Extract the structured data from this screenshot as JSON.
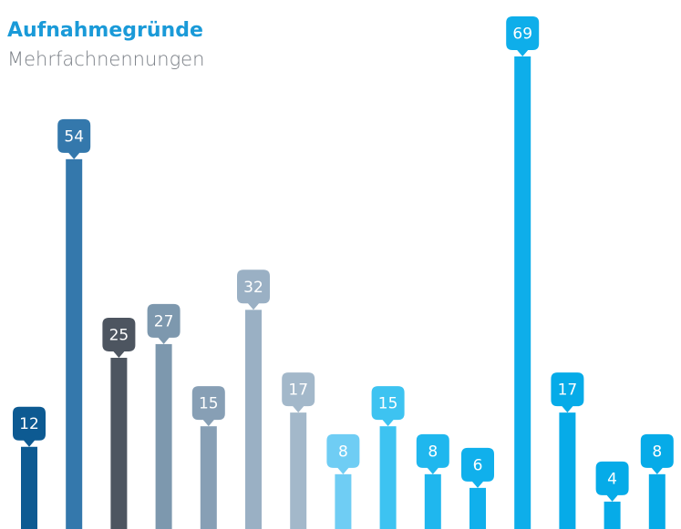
{
  "chart_data": {
    "type": "bar",
    "title": "Aufnahmegründe",
    "subtitle": "Mehrfachnennungen",
    "categories": [
      null,
      null,
      null,
      null,
      null,
      null,
      null,
      null,
      null,
      null,
      null,
      null,
      null,
      null,
      null
    ],
    "values": [
      12,
      54,
      25,
      27,
      15,
      32,
      17,
      8,
      15,
      8,
      6,
      69,
      17,
      4,
      8
    ],
    "colors": [
      "#0d5a92",
      "#3478ac",
      "#4d5560",
      "#7d98ae",
      "#879fb5",
      "#9ab0c4",
      "#a3b8ca",
      "#6fcdf4",
      "#3dc3f1",
      "#1fb7ee",
      "#10b0ec",
      "#0eaeea",
      "#06abe8",
      "#06abe8",
      "#06abe8"
    ],
    "ylim": [
      0,
      69
    ]
  }
}
